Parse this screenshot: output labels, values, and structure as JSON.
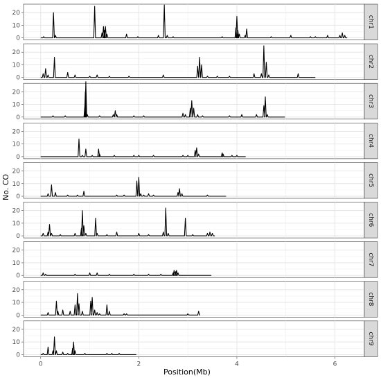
{
  "chart_data": {
    "type": "line",
    "xlabel": "Position(Mb)",
    "ylabel": "No. CO",
    "xlim": [
      -0.35,
      6.6
    ],
    "x_ticks": [
      0,
      2,
      4,
      6
    ],
    "y_ticks": [
      0,
      10,
      20
    ],
    "ylim": [
      0,
      25
    ],
    "grid": true,
    "facets": [
      {
        "name": "chr1",
        "length": 6.25,
        "peaks": [
          [
            0.06,
            1
          ],
          [
            0.26,
            20
          ],
          [
            0.3,
            2
          ],
          [
            1.1,
            25
          ],
          [
            1.25,
            4
          ],
          [
            1.28,
            9
          ],
          [
            1.3,
            6
          ],
          [
            1.32,
            9
          ],
          [
            1.35,
            3
          ],
          [
            1.75,
            3
          ],
          [
            1.98,
            1
          ],
          [
            2.4,
            2
          ],
          [
            2.52,
            26
          ],
          [
            2.58,
            2
          ],
          [
            2.7,
            1
          ],
          [
            3.7,
            1
          ],
          [
            3.98,
            8
          ],
          [
            4.0,
            17
          ],
          [
            4.02,
            6
          ],
          [
            4.05,
            3
          ],
          [
            4.17,
            2
          ],
          [
            4.2,
            7
          ],
          [
            4.7,
            1
          ],
          [
            5.1,
            2
          ],
          [
            5.5,
            1
          ],
          [
            5.6,
            1
          ],
          [
            5.85,
            2
          ],
          [
            6.1,
            2
          ],
          [
            6.15,
            4
          ],
          [
            6.2,
            2
          ]
        ]
      },
      {
        "name": "chr2",
        "length": 5.6,
        "peaks": [
          [
            0.05,
            3
          ],
          [
            0.1,
            7
          ],
          [
            0.15,
            2
          ],
          [
            0.28,
            16
          ],
          [
            0.55,
            4
          ],
          [
            0.7,
            2
          ],
          [
            1.0,
            1
          ],
          [
            1.15,
            2
          ],
          [
            1.4,
            1
          ],
          [
            1.8,
            1
          ],
          [
            2.5,
            2
          ],
          [
            3.2,
            9
          ],
          [
            3.24,
            16
          ],
          [
            3.28,
            10
          ],
          [
            3.4,
            1
          ],
          [
            3.6,
            1
          ],
          [
            3.85,
            1
          ],
          [
            4.35,
            3
          ],
          [
            4.5,
            3
          ],
          [
            4.55,
            25
          ],
          [
            4.6,
            12
          ],
          [
            4.65,
            2
          ],
          [
            5.25,
            3
          ]
        ]
      },
      {
        "name": "chr3",
        "length": 4.98,
        "peaks": [
          [
            0.25,
            1
          ],
          [
            0.5,
            1
          ],
          [
            0.9,
            9
          ],
          [
            0.91,
            20
          ],
          [
            0.92,
            28
          ],
          [
            0.95,
            2
          ],
          [
            1.2,
            1
          ],
          [
            1.48,
            2
          ],
          [
            1.52,
            5
          ],
          [
            1.55,
            2
          ],
          [
            1.9,
            1
          ],
          [
            2.1,
            1
          ],
          [
            2.9,
            3
          ],
          [
            2.95,
            2
          ],
          [
            3.05,
            7
          ],
          [
            3.08,
            13
          ],
          [
            3.12,
            7
          ],
          [
            3.2,
            2
          ],
          [
            3.3,
            1
          ],
          [
            3.85,
            1
          ],
          [
            4.1,
            2
          ],
          [
            4.4,
            2
          ],
          [
            4.55,
            9
          ],
          [
            4.58,
            16
          ],
          [
            4.62,
            2
          ]
        ]
      },
      {
        "name": "chr4",
        "length": 4.18,
        "peaks": [
          [
            0.78,
            14
          ],
          [
            0.85,
            1
          ],
          [
            0.92,
            6
          ],
          [
            1.05,
            1
          ],
          [
            1.18,
            6
          ],
          [
            1.2,
            2
          ],
          [
            1.5,
            1
          ],
          [
            1.9,
            1
          ],
          [
            2.0,
            1
          ],
          [
            2.3,
            1
          ],
          [
            2.9,
            1
          ],
          [
            3.0,
            1
          ],
          [
            3.15,
            5
          ],
          [
            3.18,
            7
          ],
          [
            3.22,
            2
          ],
          [
            3.7,
            3
          ],
          [
            3.72,
            2
          ],
          [
            3.9,
            1
          ],
          [
            4.0,
            1
          ]
        ]
      },
      {
        "name": "chr5",
        "length": 3.78,
        "peaks": [
          [
            0.15,
            2
          ],
          [
            0.22,
            9
          ],
          [
            0.3,
            3
          ],
          [
            0.55,
            1
          ],
          [
            0.75,
            1
          ],
          [
            0.88,
            4
          ],
          [
            1.55,
            1
          ],
          [
            1.7,
            1
          ],
          [
            1.96,
            12
          ],
          [
            2.0,
            15
          ],
          [
            2.04,
            2
          ],
          [
            2.1,
            1
          ],
          [
            2.2,
            2
          ],
          [
            2.3,
            1
          ],
          [
            2.8,
            3
          ],
          [
            2.83,
            6
          ],
          [
            2.88,
            2
          ],
          [
            3.4,
            1
          ]
        ]
      },
      {
        "name": "chr6",
        "length": 3.55,
        "peaks": [
          [
            0.05,
            2
          ],
          [
            0.15,
            3
          ],
          [
            0.18,
            9
          ],
          [
            0.22,
            2
          ],
          [
            0.4,
            1
          ],
          [
            0.7,
            2
          ],
          [
            0.83,
            6
          ],
          [
            0.85,
            20
          ],
          [
            0.88,
            8
          ],
          [
            0.92,
            2
          ],
          [
            1.12,
            14
          ],
          [
            1.15,
            2
          ],
          [
            1.35,
            1
          ],
          [
            1.55,
            3
          ],
          [
            2.0,
            2
          ],
          [
            2.2,
            1
          ],
          [
            2.5,
            3
          ],
          [
            2.55,
            22
          ],
          [
            2.6,
            2
          ],
          [
            2.95,
            14
          ],
          [
            3.1,
            1
          ],
          [
            3.4,
            2
          ],
          [
            3.45,
            3
          ],
          [
            3.5,
            2
          ]
        ]
      },
      {
        "name": "chr7",
        "length": 3.48,
        "peaks": [
          [
            0.05,
            2
          ],
          [
            0.1,
            1
          ],
          [
            0.7,
            1
          ],
          [
            1.0,
            2
          ],
          [
            1.15,
            2
          ],
          [
            1.4,
            1
          ],
          [
            1.9,
            1
          ],
          [
            2.2,
            1
          ],
          [
            2.45,
            1
          ],
          [
            2.7,
            2
          ],
          [
            2.72,
            4
          ],
          [
            2.75,
            3
          ],
          [
            2.77,
            4
          ],
          [
            2.8,
            2
          ]
        ]
      },
      {
        "name": "chr8",
        "length": 3.25,
        "peaks": [
          [
            0.15,
            2
          ],
          [
            0.32,
            11
          ],
          [
            0.35,
            3
          ],
          [
            0.45,
            4
          ],
          [
            0.6,
            3
          ],
          [
            0.7,
            8
          ],
          [
            0.75,
            17
          ],
          [
            0.78,
            9
          ],
          [
            0.85,
            3
          ],
          [
            1.02,
            11
          ],
          [
            1.05,
            14
          ],
          [
            1.1,
            4
          ],
          [
            1.15,
            2
          ],
          [
            1.2,
            1
          ],
          [
            1.35,
            8
          ],
          [
            1.4,
            3
          ],
          [
            1.7,
            1
          ],
          [
            1.75,
            1
          ],
          [
            3.0,
            1
          ],
          [
            3.22,
            3
          ]
        ]
      },
      {
        "name": "chr9",
        "length": 1.95,
        "peaks": [
          [
            0.05,
            1
          ],
          [
            0.15,
            6
          ],
          [
            0.25,
            3
          ],
          [
            0.28,
            14
          ],
          [
            0.32,
            3
          ],
          [
            0.45,
            2
          ],
          [
            0.55,
            1
          ],
          [
            0.65,
            5
          ],
          [
            0.67,
            10
          ],
          [
            0.7,
            3
          ],
          [
            0.9,
            1
          ],
          [
            1.35,
            1
          ],
          [
            1.45,
            1
          ],
          [
            1.6,
            1
          ]
        ]
      }
    ]
  }
}
